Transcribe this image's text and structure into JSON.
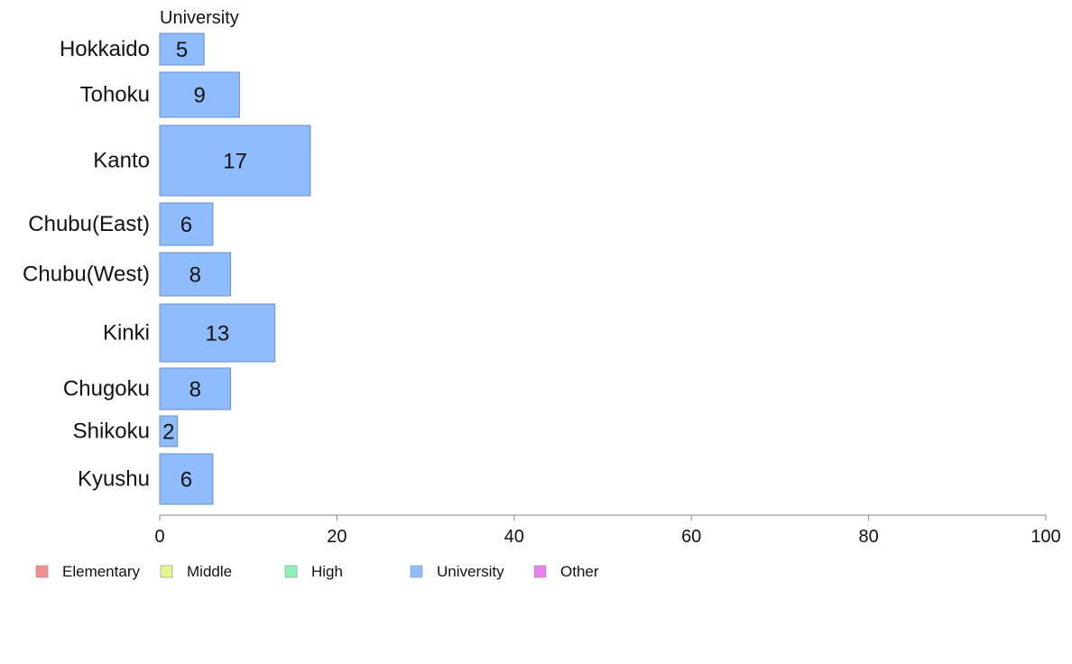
{
  "chart_data": {
    "type": "bar",
    "orientation": "horizontal",
    "panel_title": "University",
    "categories": [
      "Hokkaido",
      "Tohoku",
      "Kanto",
      "Chubu(East)",
      "Chubu(West)",
      "Kinki",
      "Chugoku",
      "Shikoku",
      "Kyushu"
    ],
    "values": [
      5,
      9,
      17,
      6,
      8,
      13,
      8,
      2,
      6
    ],
    "bar_labels": [
      "5",
      "9",
      "17",
      "6",
      "8",
      "13",
      "8",
      "2",
      "6"
    ],
    "xlim": [
      0,
      100
    ],
    "x_ticks": [
      0,
      20,
      40,
      60,
      80,
      100
    ],
    "x_tick_labels": [
      "0",
      "20",
      "40",
      "60",
      "80",
      "100"
    ],
    "grid": false,
    "legend_position": "bottom",
    "legend": [
      {
        "label": "Elementary",
        "color": "#f28e8e"
      },
      {
        "label": "Middle",
        "color": "#e4f78a"
      },
      {
        "label": "High",
        "color": "#8ef2b9"
      },
      {
        "label": "University",
        "color": "#8ebcff"
      },
      {
        "label": "Other",
        "color": "#ea82ee"
      }
    ],
    "bar_color": "#8ebcff",
    "bar_stroke": "#6f8cb8",
    "axis_color": "#888888"
  }
}
